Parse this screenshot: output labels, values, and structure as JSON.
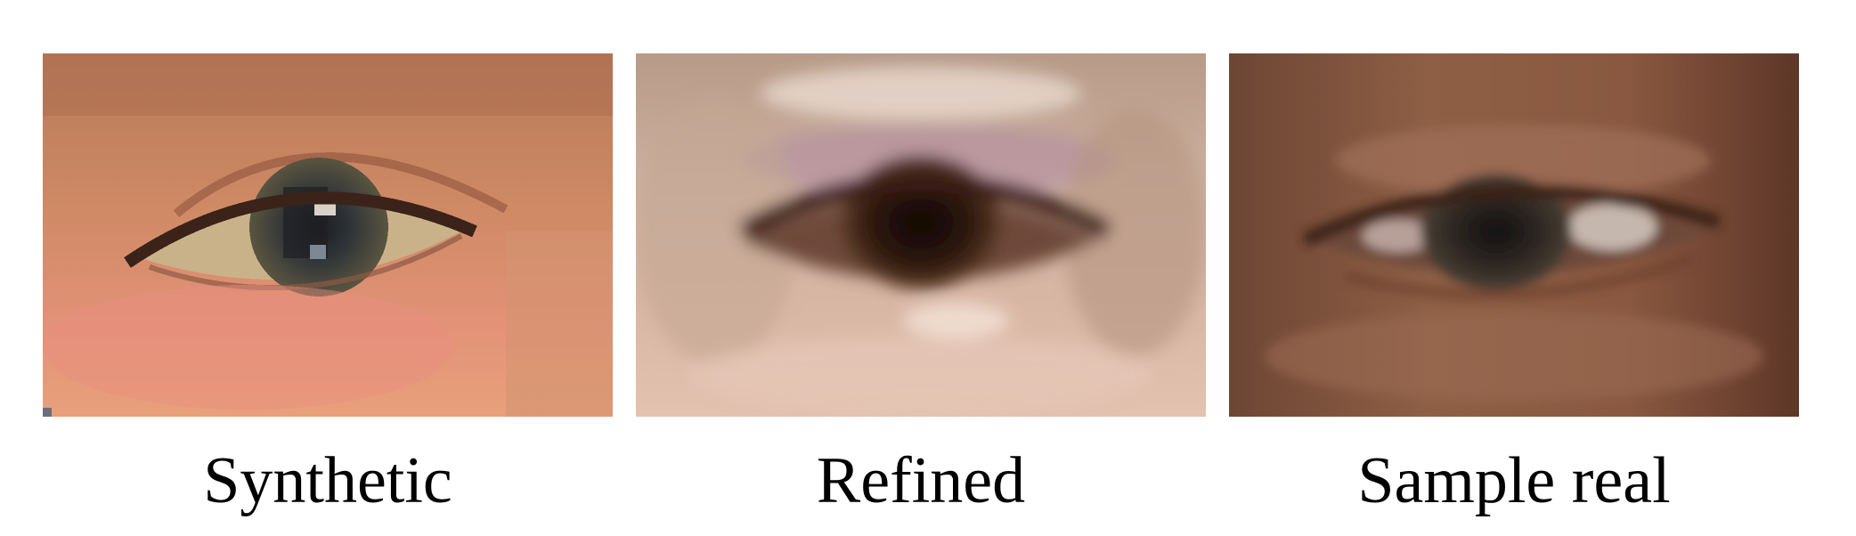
{
  "panels": [
    {
      "caption": "Synthetic",
      "skin": "#d9906a",
      "skin_dark": "#b56c4c",
      "skin_light": "#e9a486",
      "iris": "#4b4638",
      "pupil": "#1b1a19"
    },
    {
      "caption": "Refined",
      "skin": "#cfa493",
      "skin_dark": "#a57c6e",
      "skin_light": "#e2c3b3",
      "iris": "#3c2414",
      "pupil": "#160c07"
    },
    {
      "caption": "Sample real",
      "skin": "#8f5b40",
      "skin_dark": "#6a3f2b",
      "skin_light": "#a4745a",
      "iris": "#3a3027",
      "pupil": "#1a1411"
    }
  ]
}
